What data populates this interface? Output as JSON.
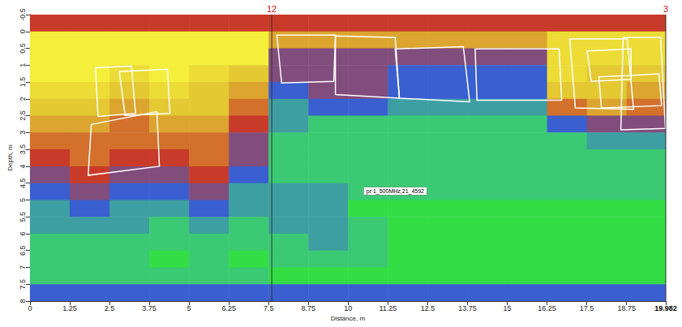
{
  "chart_data": {
    "type": "radargram",
    "x_label": "Distance, m",
    "y_label": "Depth, m",
    "xlim": [
      0,
      19.982
    ],
    "ylim": [
      -0.5,
      8
    ],
    "xticks": [
      0,
      1.25,
      2.5,
      3.75,
      5,
      6.25,
      7.5,
      8.75,
      10,
      11.25,
      12.5,
      13.75,
      15,
      16.25,
      17.5,
      18.75,
      19.982
    ],
    "yticks": [
      -0.5,
      0,
      0.5,
      1,
      1.5,
      2,
      2.5,
      3,
      3.5,
      4,
      4.5,
      5,
      5.5,
      6,
      6.5,
      7,
      7.5,
      8
    ],
    "x_edges": [
      0,
      1.25,
      2.5,
      3.75,
      5,
      6.25,
      7.5,
      8.75,
      10,
      11.25,
      12.5,
      13.75,
      15,
      16.25,
      17.5,
      18.75,
      19.982
    ],
    "y_edges": [
      -0.5,
      0,
      0.5,
      1,
      1.5,
      2,
      2.5,
      3,
      3.5,
      4,
      4.5,
      5,
      5.5,
      6,
      6.5,
      7,
      7.5,
      8
    ],
    "color_range": [
      0,
      10
    ],
    "cells": [
      [
        5,
        5,
        5,
        5,
        5,
        5,
        5,
        5,
        5,
        5,
        5,
        5,
        5,
        5,
        5,
        5
      ],
      [
        10,
        10,
        10,
        10,
        10,
        10,
        7,
        7,
        7,
        7,
        7,
        7,
        7,
        9,
        9,
        9
      ],
      [
        10,
        10,
        10,
        10,
        10,
        10,
        4,
        4,
        4,
        4,
        4,
        4,
        4,
        9,
        9,
        9
      ],
      [
        10,
        10,
        9,
        10,
        9,
        8,
        4,
        4,
        4,
        3,
        3,
        3,
        3,
        9,
        8,
        8
      ],
      [
        9,
        9,
        8,
        9,
        8,
        7,
        3,
        4,
        4,
        3,
        3,
        3,
        3,
        8,
        8,
        7
      ],
      [
        8,
        8,
        7,
        8,
        8,
        6,
        2,
        3,
        3,
        2,
        2,
        2,
        2,
        6,
        7,
        6
      ],
      [
        7,
        7,
        6,
        7,
        7,
        5,
        2,
        1,
        1,
        1,
        1,
        1,
        1,
        3,
        4,
        4
      ],
      [
        6,
        6,
        6,
        6,
        6,
        4,
        1,
        1,
        1,
        1,
        1,
        1,
        1,
        1,
        2,
        2
      ],
      [
        5,
        6,
        5,
        5,
        6,
        4,
        1,
        1,
        1,
        1,
        1,
        1,
        1,
        1,
        1,
        1
      ],
      [
        4,
        5,
        4,
        4,
        5,
        3,
        1,
        1,
        1,
        1,
        1,
        1,
        1,
        1,
        1,
        1
      ],
      [
        3,
        4,
        3,
        3,
        4,
        2,
        2,
        2,
        1,
        1,
        1,
        1,
        1,
        1,
        1,
        1
      ],
      [
        2,
        3,
        2,
        2,
        3,
        2,
        2,
        2,
        0,
        0,
        0,
        0,
        0,
        0,
        0,
        0
      ],
      [
        2,
        2,
        2,
        1,
        2,
        1,
        2,
        2,
        1,
        0,
        0,
        0,
        0,
        0,
        0,
        0
      ],
      [
        1,
        1,
        1,
        1,
        1,
        1,
        1,
        2,
        1,
        0,
        0,
        0,
        0,
        0,
        0,
        0
      ],
      [
        1,
        1,
        1,
        0,
        1,
        0,
        1,
        1,
        1,
        0,
        0,
        0,
        0,
        0,
        0,
        0
      ],
      [
        1,
        1,
        1,
        1,
        1,
        1,
        0,
        0,
        0,
        0,
        0,
        0,
        0,
        0,
        0,
        0
      ],
      [
        3,
        3,
        3,
        3,
        3,
        3,
        3,
        3,
        3,
        3,
        3,
        3,
        3,
        3,
        3,
        3
      ]
    ],
    "boxes": [
      [
        [
          2.06,
          1.08
        ],
        [
          3.19,
          1.03
        ],
        [
          3.32,
          2.43
        ],
        [
          2.14,
          2.52
        ]
      ],
      [
        [
          2.81,
          1.19
        ],
        [
          4.32,
          1.12
        ],
        [
          4.4,
          2.43
        ],
        [
          2.99,
          2.49
        ]
      ],
      [
        [
          1.93,
          2.76
        ],
        [
          3.99,
          2.38
        ],
        [
          4.07,
          4.0
        ],
        [
          1.83,
          4.27
        ]
      ],
      [
        [
          7.76,
          0.11
        ],
        [
          9.6,
          0.11
        ],
        [
          9.55,
          1.48
        ],
        [
          7.91,
          1.53
        ]
      ],
      [
        [
          9.6,
          0.13
        ],
        [
          11.48,
          0.18
        ],
        [
          11.61,
          1.98
        ],
        [
          9.6,
          1.87
        ]
      ],
      [
        [
          11.48,
          0.52
        ],
        [
          13.62,
          0.45
        ],
        [
          13.82,
          2.09
        ],
        [
          11.61,
          1.98
        ]
      ],
      [
        [
          13.99,
          0.52
        ],
        [
          16.63,
          0.52
        ],
        [
          16.71,
          2.04
        ],
        [
          14.05,
          2.04
        ]
      ],
      [
        [
          16.96,
          0.22
        ],
        [
          18.77,
          0.22
        ],
        [
          18.97,
          2.31
        ],
        [
          17.14,
          2.27
        ]
      ],
      [
        [
          17.51,
          0.58
        ],
        [
          18.89,
          0.52
        ],
        [
          18.89,
          1.42
        ],
        [
          17.64,
          1.48
        ]
      ],
      [
        [
          17.88,
          1.35
        ],
        [
          19.77,
          1.26
        ],
        [
          19.85,
          2.2
        ],
        [
          17.96,
          2.27
        ]
      ],
      [
        [
          18.64,
          0.18
        ],
        [
          19.82,
          0.18
        ],
        [
          19.97,
          2.88
        ],
        [
          18.57,
          2.92
        ]
      ]
    ],
    "markers": [
      {
        "x": 7.6,
        "label": "12"
      },
      {
        "x": 19.982,
        "label": "3"
      }
    ],
    "annotations": [
      {
        "x": 11.48,
        "y": 4.74,
        "text": "pr 1_500MHz,21_4592"
      }
    ]
  }
}
